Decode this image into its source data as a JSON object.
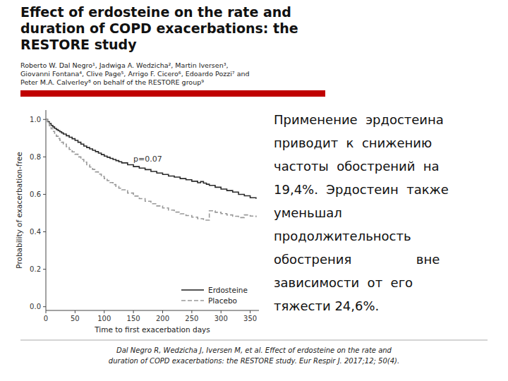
{
  "chart_data": {
    "type": "step",
    "title": "Effect of erdosteine on the rate and\nduration of COPD exacerbations: the\nRESTORE study",
    "subtitle": "Roberto W. Dal Negro¹, Jadwiga A. Wedzicha², Martin Iversen³,\nGiovanni Fontana⁴, Clive Page⁵, Arrigo F. Cicero⁶, Edoardo Pozzi⁷ and\nPeter M.A. Calverley⁸ on behalf of the RESTORE group⁹",
    "x_label": "Time to first exacerbation days",
    "y_label": "Probability of exacerbation-free",
    "xlim": [
      0,
      365
    ],
    "ylim": [
      -0.02,
      1.05
    ],
    "xticks": [
      0,
      50,
      100,
      150,
      200,
      250,
      300,
      350
    ],
    "yticks": [
      {
        "value": 0.0,
        "label": "0.0"
      },
      0.2,
      0.4,
      0.6,
      0.8,
      {
        "value": 1.0,
        "label": "1.0"
      }
    ],
    "legend": "lower right",
    "annotations": [
      {
        "text": "p=0.07",
        "x": 150,
        "y": 0.775
      }
    ],
    "series": [
      {
        "name": "Erdosteine",
        "color": "#2a2a2a",
        "line_style": "solid",
        "x": [
          0,
          3,
          6,
          9,
          12,
          15,
          18,
          21,
          24,
          27,
          30,
          35,
          40,
          45,
          50,
          55,
          60,
          65,
          70,
          75,
          80,
          85,
          90,
          95,
          100,
          105,
          110,
          115,
          120,
          125,
          130,
          140,
          150,
          160,
          170,
          180,
          190,
          200,
          210,
          220,
          230,
          240,
          250,
          260,
          265,
          270,
          275,
          280,
          290,
          300,
          310,
          320,
          330,
          340,
          350,
          360
        ],
        "values": [
          1.0,
          0.988,
          0.978,
          0.968,
          0.96,
          0.952,
          0.946,
          0.94,
          0.934,
          0.928,
          0.922,
          0.913,
          0.905,
          0.897,
          0.888,
          0.878,
          0.868,
          0.858,
          0.85,
          0.843,
          0.835,
          0.828,
          0.82,
          0.812,
          0.804,
          0.798,
          0.792,
          0.786,
          0.78,
          0.774,
          0.768,
          0.758,
          0.748,
          0.74,
          0.732,
          0.722,
          0.714,
          0.706,
          0.698,
          0.692,
          0.684,
          0.678,
          0.67,
          0.662,
          0.668,
          0.66,
          0.654,
          0.648,
          0.638,
          0.628,
          0.62,
          0.612,
          0.6,
          0.592,
          0.582,
          0.576
        ]
      },
      {
        "name": "Placebo",
        "color": "#999999",
        "line_style": "dashed",
        "x": [
          0,
          3,
          6,
          9,
          12,
          15,
          18,
          21,
          24,
          27,
          30,
          35,
          40,
          45,
          50,
          55,
          60,
          65,
          70,
          75,
          80,
          85,
          90,
          95,
          100,
          105,
          110,
          115,
          120,
          125,
          130,
          140,
          150,
          160,
          170,
          180,
          190,
          200,
          210,
          220,
          230,
          240,
          250,
          260,
          270,
          280,
          290,
          300,
          310,
          320,
          330,
          340,
          350,
          360
        ],
        "values": [
          1.0,
          0.982,
          0.966,
          0.95,
          0.936,
          0.922,
          0.91,
          0.898,
          0.888,
          0.878,
          0.868,
          0.854,
          0.84,
          0.827,
          0.814,
          0.8,
          0.786,
          0.772,
          0.758,
          0.746,
          0.733,
          0.72,
          0.708,
          0.696,
          0.684,
          0.673,
          0.663,
          0.652,
          0.642,
          0.633,
          0.624,
          0.607,
          0.591,
          0.577,
          0.563,
          0.55,
          0.538,
          0.527,
          0.516,
          0.505,
          0.496,
          0.487,
          0.478,
          0.47,
          0.462,
          0.512,
          0.504,
          0.497,
          0.49,
          0.483,
          0.476,
          0.49,
          0.484,
          0.478
        ]
      }
    ],
    "side_text": [
      "Применение  эрдостеина",
      "приводит  к  снижению",
      "частоты  обострений  на",
      "19,4%.  Эрдостеин  также",
      "уменьшал",
      "продолжительность",
      "обострения                вне",
      "зависимости  от  его",
      "тяжести 24,6%."
    ],
    "citation": "Dal Negro R, Wedzicha J, Iversen M, et al. Effect of erdosteine on the rate and\nduration of COPD exacerbations: the RESTORE study. Eur Respir J. 2017;12; 50(4)."
  }
}
